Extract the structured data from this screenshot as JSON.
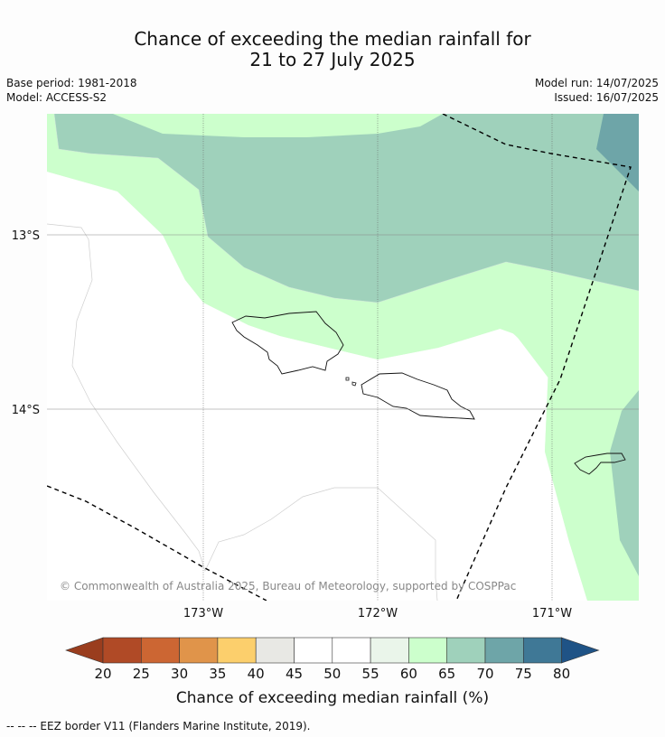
{
  "header": {
    "title_line1": "Chance of exceeding the median rainfall for",
    "title_line2": "21 to 27 July 2025",
    "base_period": "Base period: 1981-2018",
    "model": "Model: ACCESS-S2",
    "model_run": "Model run: 14/07/2025",
    "issued": "Issued: 16/07/2025"
  },
  "map": {
    "lat_labels": [
      "13°S",
      "14°S"
    ],
    "lon_labels": [
      "173°W",
      "172°W",
      "171°W"
    ],
    "copyright": "© Commonwealth of Australia 2025, Bureau of Meteorology, supported by COSPPac"
  },
  "colorbar": {
    "ticks": [
      "20",
      "25",
      "30",
      "35",
      "40",
      "45",
      "50",
      "55",
      "60",
      "65",
      "70",
      "75",
      "80"
    ],
    "colors": [
      "#b04a26",
      "#cc6633",
      "#e0944a",
      "#fccf6c",
      "#e8e8e4",
      "#ffffff",
      "#ffffff",
      "#eaf5ea",
      "#ccffcc",
      "#9fd1bb",
      "#6ea5a8",
      "#3f7896"
    ],
    "under_color": "#9a3d1e",
    "over_color": "#1f5386",
    "label": "Chance of exceeding median rainfall (%)"
  },
  "footer": {
    "eez_note": "--  --  -- EEZ border V11 (Flanders Marine Institute, 2019)."
  }
}
